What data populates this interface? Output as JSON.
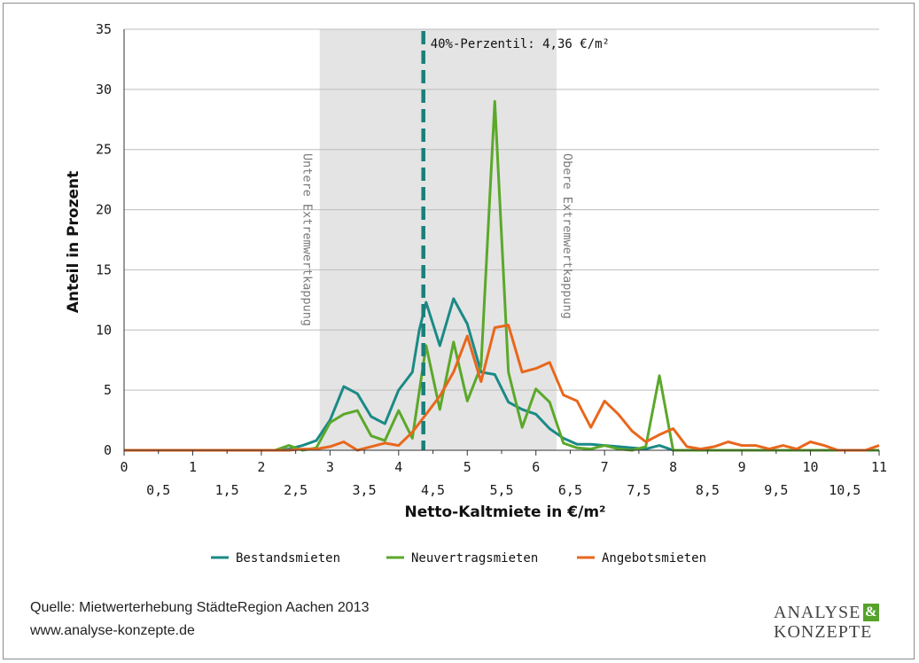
{
  "chart_data": {
    "type": "line",
    "xlabel": "Netto-Kaltmiete in €/m²",
    "ylabel": "Anteil in Prozent",
    "xlim": [
      0,
      11
    ],
    "ylim": [
      0,
      35
    ],
    "x_ticks_major": [
      "0",
      "1",
      "2",
      "3",
      "4",
      "5",
      "6",
      "7",
      "8",
      "9",
      "10",
      "11"
    ],
    "x_ticks_minor": [
      "0,5",
      "1,5",
      "2,5",
      "3,5",
      "4,5",
      "5,5",
      "6,5",
      "7,5",
      "8,5",
      "9,5",
      "10,5"
    ],
    "y_ticks": [
      "0",
      "5",
      "10",
      "15",
      "20",
      "25",
      "30",
      "35"
    ],
    "grid": "horizontal",
    "legend_position": "bottom",
    "bands": [
      {
        "x0": 2.85,
        "x1": 6.3,
        "left_label": "Untere Extremwertkappung",
        "right_label": "Obere Extremwertkappung",
        "color": "#e4e4e4"
      }
    ],
    "vline": {
      "x": 4.36,
      "label": "40%-Perzentil: 4,36 €/m²",
      "color": "#1a7f7a"
    },
    "series": [
      {
        "name": "Bestandsmieten",
        "color": "#1a8a86",
        "x": [
          0,
          2.2,
          2.4,
          2.6,
          2.8,
          3.0,
          3.2,
          3.4,
          3.6,
          3.8,
          4.0,
          4.2,
          4.3,
          4.4,
          4.6,
          4.8,
          5.0,
          5.2,
          5.4,
          5.6,
          5.8,
          6.0,
          6.2,
          6.4,
          6.6,
          6.8,
          7.0,
          7.2,
          7.4,
          7.6,
          7.8,
          8.0,
          8.2,
          11.0
        ],
        "y": [
          0,
          0,
          0.1,
          0.4,
          0.8,
          2.5,
          5.3,
          4.7,
          2.8,
          2.2,
          5.0,
          6.5,
          10.0,
          12.3,
          8.7,
          12.6,
          10.5,
          6.5,
          6.3,
          4.0,
          3.4,
          3.0,
          1.8,
          1.0,
          0.5,
          0.5,
          0.4,
          0.3,
          0.2,
          0.1,
          0.4,
          0.0,
          0.0,
          0
        ]
      },
      {
        "name": "Neuvertragsmieten",
        "color": "#5ba82a",
        "x": [
          0,
          2.2,
          2.4,
          2.6,
          2.8,
          3.0,
          3.2,
          3.4,
          3.6,
          3.8,
          4.0,
          4.2,
          4.4,
          4.6,
          4.8,
          5.0,
          5.2,
          5.4,
          5.6,
          5.8,
          6.0,
          6.2,
          6.4,
          6.6,
          6.8,
          7.0,
          7.2,
          7.4,
          7.6,
          7.8,
          8.0,
          8.2,
          11.0
        ],
        "y": [
          0,
          0,
          0.4,
          0.0,
          0.2,
          2.3,
          3.0,
          3.3,
          1.2,
          0.8,
          3.3,
          1.0,
          8.7,
          3.4,
          9.0,
          4.1,
          7.0,
          29.0,
          6.5,
          1.9,
          5.1,
          4.0,
          0.6,
          0.2,
          0.1,
          0.4,
          0.1,
          0.0,
          0.3,
          6.2,
          0.0,
          0.0,
          0
        ]
      },
      {
        "name": "Angebotsmieten",
        "color": "#e8671c",
        "x": [
          0,
          2.2,
          2.4,
          2.6,
          2.8,
          3.0,
          3.2,
          3.4,
          3.6,
          3.8,
          4.0,
          4.2,
          4.4,
          4.6,
          4.8,
          5.0,
          5.2,
          5.4,
          5.6,
          5.8,
          6.0,
          6.2,
          6.4,
          6.6,
          6.8,
          7.0,
          7.2,
          7.4,
          7.6,
          7.8,
          8.0,
          8.2,
          8.4,
          8.6,
          8.8,
          9.0,
          9.2,
          9.4,
          9.6,
          9.8,
          10.0,
          10.2,
          10.4,
          10.6,
          10.8,
          11.0
        ],
        "y": [
          0,
          0,
          0.0,
          0.1,
          0.1,
          0.3,
          0.7,
          0.0,
          0.3,
          0.6,
          0.4,
          1.5,
          3.0,
          4.5,
          6.5,
          9.5,
          5.7,
          10.2,
          10.4,
          6.5,
          6.8,
          7.3,
          4.6,
          4.1,
          1.9,
          4.1,
          3.0,
          1.6,
          0.7,
          1.3,
          1.8,
          0.3,
          0.1,
          0.3,
          0.7,
          0.4,
          0.4,
          0.1,
          0.4,
          0.1,
          0.7,
          0.4,
          0.0,
          0.0,
          0.0,
          0.4
        ]
      }
    ]
  },
  "footer": {
    "source_line1": "Quelle: Mietwerterhebung StädteRegion Aachen 2013",
    "source_line2": "www.analyse-konzepte.de"
  },
  "logo": {
    "line1": "ANALYSE",
    "amp": "&",
    "line2": "KONZEPTE",
    "accent": "#56a22c"
  }
}
